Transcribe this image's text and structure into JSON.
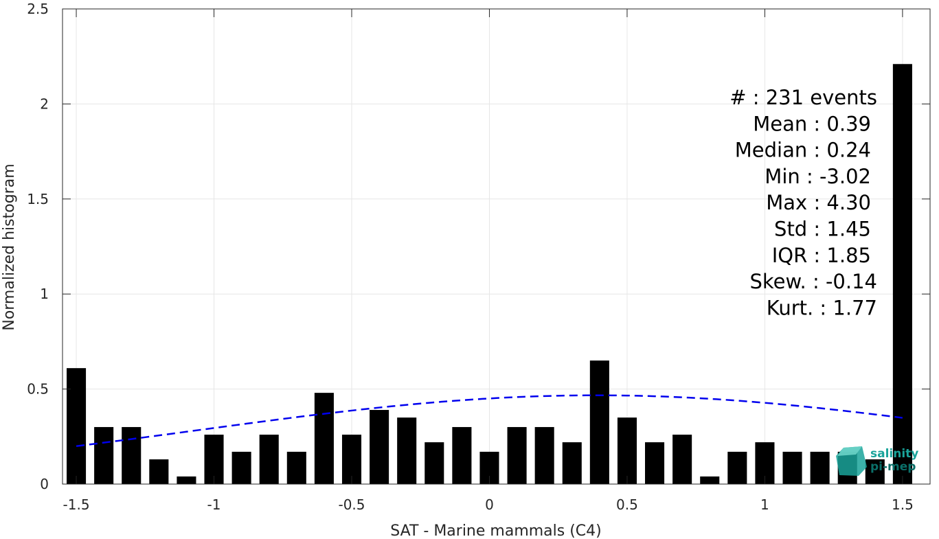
{
  "chart_data": {
    "type": "bar",
    "xlabel": "SAT - Marine mammals (C4)",
    "ylabel": "Normalized histogram",
    "xlim": [
      -1.55,
      1.6
    ],
    "ylim": [
      0,
      2.5
    ],
    "xticks": [
      -1.5,
      -1,
      -0.5,
      0,
      0.5,
      1,
      1.5
    ],
    "xtick_labels": [
      "-1.5",
      "-1",
      "-0.5",
      "0",
      "0.5",
      "1",
      "1.5"
    ],
    "yticks": [
      0,
      0.5,
      1,
      1.5,
      2,
      2.5
    ],
    "ytick_labels": [
      "0",
      "0.5",
      "1",
      "1.5",
      "2",
      "2.5"
    ],
    "grid": true,
    "bar_width": 0.07,
    "bars": {
      "x": [
        -1.5,
        -1.4,
        -1.3,
        -1.2,
        -1.1,
        -1.0,
        -0.9,
        -0.8,
        -0.7,
        -0.6,
        -0.5,
        -0.4,
        -0.3,
        -0.2,
        -0.1,
        0.0,
        0.1,
        0.2,
        0.3,
        0.4,
        0.5,
        0.6,
        0.7,
        0.8,
        0.9,
        1.0,
        1.1,
        1.2,
        1.3,
        1.4,
        1.5
      ],
      "values": [
        0.61,
        0.3,
        0.3,
        0.13,
        0.04,
        0.26,
        0.17,
        0.26,
        0.17,
        0.48,
        0.26,
        0.39,
        0.35,
        0.22,
        0.3,
        0.17,
        0.3,
        0.3,
        0.22,
        0.65,
        0.35,
        0.22,
        0.26,
        0.04,
        0.17,
        0.22,
        0.17,
        0.17,
        0.17,
        0.13,
        2.21
      ],
      "color": "#000000"
    },
    "fit_curve": {
      "style": "dashed",
      "color": "#0000ee",
      "mean": 0.39,
      "std": 1.45,
      "scale": 0.467,
      "x_range": [
        -1.5,
        1.5
      ]
    },
    "annotation": [
      "#  : 231 events",
      "Mean : 0.39",
      "Median : 0.24",
      "Min : -3.02",
      "Max : 4.30",
      "Std : 1.45",
      "IQR : 1.85",
      "Skew. : -0.14",
      "Kurt. : 1.77"
    ]
  },
  "logo": {
    "line1": "salinity",
    "line2": "pi-mep",
    "color": "#1aa39a"
  }
}
